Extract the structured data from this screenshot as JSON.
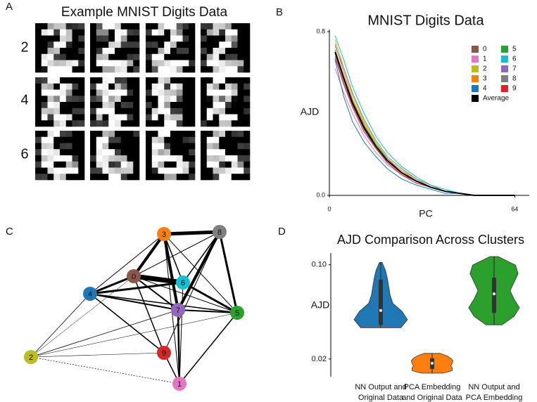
{
  "panel_labels": [
    "A",
    "B",
    "C",
    "D"
  ],
  "digit_images": {
    "title": "Example MNIST Digits Data",
    "row_labels": [
      "2",
      "4",
      "6"
    ]
  },
  "network": {
    "nodes": [
      {
        "label": "0",
        "color": "#8c564b"
      },
      {
        "label": "1",
        "color": "#e377c2"
      },
      {
        "label": "2",
        "color": "#bcbd22"
      },
      {
        "label": "3",
        "color": "#ff7f0e"
      },
      {
        "label": "4",
        "color": "#1f77b4"
      },
      {
        "label": "5",
        "color": "#2ca02c"
      },
      {
        "label": "6",
        "color": "#17becf"
      },
      {
        "label": "7",
        "color": "#9467bd"
      },
      {
        "label": "8",
        "color": "#7f7f7f"
      },
      {
        "label": "9",
        "color": "#d62728"
      }
    ]
  },
  "chart_data": [
    {
      "type": "line",
      "title": "MNIST Digits Data",
      "x_label": "PC",
      "y_label": "AJD",
      "x": [
        2,
        5,
        8,
        12,
        16,
        20,
        25,
        30,
        35,
        40,
        45,
        50,
        55,
        60,
        64
      ],
      "xlim": [
        0,
        69
      ],
      "xticks": [
        0,
        64
      ],
      "ylim": [
        0,
        0.8
      ],
      "yticks": [
        {
          "value": 0,
          "label": "0.0"
        },
        0.8
      ],
      "series": [
        {
          "name": "0",
          "color": "#8c564b",
          "values": [
            0.71,
            0.58,
            0.46,
            0.34,
            0.24,
            0.17,
            0.11,
            0.07,
            0.04,
            0.02,
            0.01,
            0,
            0,
            0,
            0
          ]
        },
        {
          "name": "1",
          "color": "#e377c2",
          "values": [
            0.62,
            0.5,
            0.4,
            0.29,
            0.21,
            0.15,
            0.1,
            0.06,
            0.04,
            0.02,
            0.01,
            0,
            0,
            0,
            0
          ]
        },
        {
          "name": "2",
          "color": "#bcbd22",
          "values": [
            0.76,
            0.62,
            0.49,
            0.36,
            0.26,
            0.18,
            0.12,
            0.08,
            0.04,
            0.02,
            0.01,
            0,
            0,
            0,
            0
          ]
        },
        {
          "name": "3",
          "color": "#ff7f0e",
          "values": [
            0.74,
            0.6,
            0.47,
            0.35,
            0.25,
            0.18,
            0.12,
            0.07,
            0.04,
            0.02,
            0.01,
            0,
            0,
            0,
            0
          ]
        },
        {
          "name": "4",
          "color": "#1f77b4",
          "values": [
            0.66,
            0.48,
            0.36,
            0.26,
            0.19,
            0.13,
            0.08,
            0.05,
            0.03,
            0.01,
            0.01,
            0,
            0,
            0,
            0
          ]
        },
        {
          "name": "5",
          "color": "#2ca02c",
          "values": [
            0.69,
            0.57,
            0.46,
            0.34,
            0.25,
            0.18,
            0.11,
            0.07,
            0.04,
            0.02,
            0.01,
            0,
            0,
            0,
            0
          ]
        },
        {
          "name": "6",
          "color": "#17becf",
          "values": [
            0.78,
            0.66,
            0.53,
            0.4,
            0.29,
            0.21,
            0.14,
            0.09,
            0.05,
            0.03,
            0.01,
            0,
            0,
            0,
            0
          ]
        },
        {
          "name": "7",
          "color": "#9467bd",
          "values": [
            0.68,
            0.55,
            0.44,
            0.32,
            0.23,
            0.16,
            0.1,
            0.07,
            0.04,
            0.02,
            0.01,
            0,
            0,
            0,
            0
          ]
        },
        {
          "name": "8",
          "color": "#7f7f7f",
          "values": [
            0.73,
            0.62,
            0.5,
            0.37,
            0.27,
            0.19,
            0.13,
            0.08,
            0.05,
            0.02,
            0.01,
            0,
            0,
            0,
            0
          ]
        },
        {
          "name": "9",
          "color": "#d62728",
          "values": [
            0.67,
            0.54,
            0.43,
            0.31,
            0.23,
            0.16,
            0.1,
            0.06,
            0.04,
            0.02,
            0.01,
            0,
            0,
            0,
            0
          ]
        },
        {
          "name": "Average",
          "color": "#000000",
          "values": [
            0.7,
            0.57,
            0.45,
            0.33,
            0.24,
            0.17,
            0.11,
            0.07,
            0.04,
            0.02,
            0.01,
            0,
            0,
            0,
            0
          ]
        }
      ]
    },
    {
      "type": "violin",
      "title": "AJD Comparison Across Clusters",
      "y_label": "AJD",
      "ylim": [
        0.005,
        0.11
      ],
      "yticks": [
        0.02,
        {
          "value": 0.1,
          "label": "0.10"
        }
      ],
      "categories": [
        [
          "NN Output and",
          "Original Data"
        ],
        [
          "PCA Embedding",
          "and Original Data"
        ],
        [
          "NN Output and",
          "PCA Embedding"
        ]
      ],
      "violins": [
        {
          "color": "#1f77b4",
          "min": 0.0465,
          "q1": 0.049,
          "median": 0.0612,
          "q3": 0.0875,
          "max": 0.102,
          "density": [
            0.75,
            1.0,
            0.8,
            0.45,
            0.35,
            0.3,
            0.25,
            0.18,
            0.05
          ]
        },
        {
          "color": "#ff7f0e",
          "min": 0.008,
          "q1": 0.0116,
          "median": 0.0164,
          "q3": 0.0206,
          "max": 0.0248,
          "density": [
            0.4,
            0.75,
            0.75,
            0.7,
            0.75,
            0.78,
            0.7,
            0.55,
            0.3
          ]
        },
        {
          "color": "#2ca02c",
          "min": 0.049,
          "q1": 0.0591,
          "median": 0.0753,
          "q3": 0.089,
          "max": 0.107,
          "density": [
            0.3,
            0.75,
            0.95,
            0.75,
            0.6,
            0.75,
            0.9,
            0.8,
            0.15
          ]
        }
      ]
    }
  ]
}
